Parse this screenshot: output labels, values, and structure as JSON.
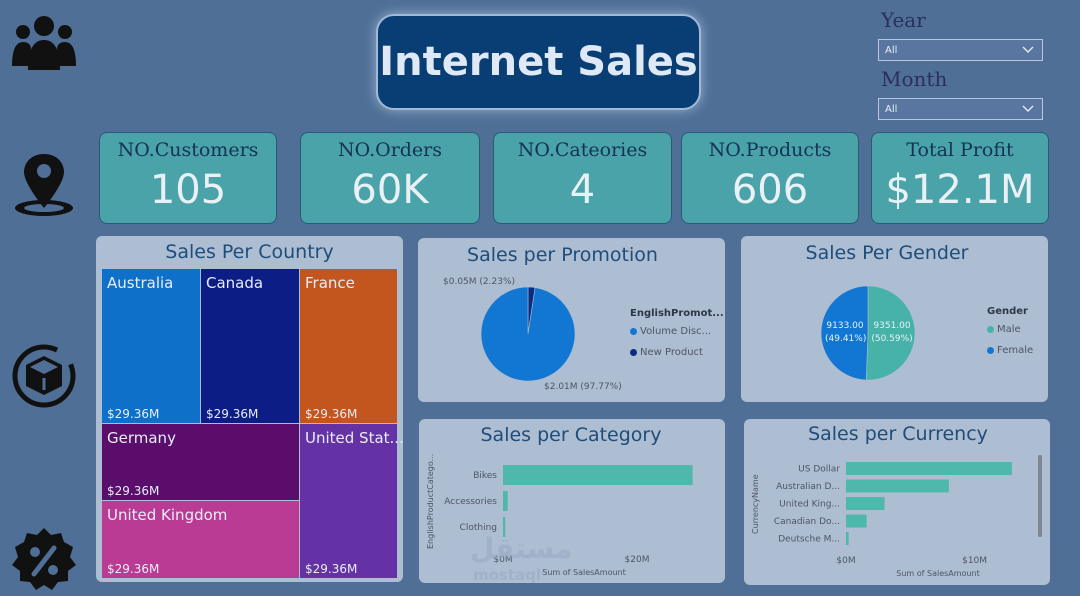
{
  "title": "Internet Sales",
  "nav": {
    "icons": [
      "users-icon",
      "map-pin-icon",
      "product-box-icon",
      "discount-badge-icon"
    ]
  },
  "slicers": {
    "year": {
      "label": "Year",
      "value": "All"
    },
    "month": {
      "label": "Month",
      "value": "All"
    }
  },
  "kpis": [
    {
      "label": "NO.Customers",
      "value": "105"
    },
    {
      "label": "NO.Orders",
      "value": "60K"
    },
    {
      "label": "NO.Cateories",
      "value": "4"
    },
    {
      "label": "NO.Products",
      "value": "606"
    },
    {
      "label": "Total Profit",
      "value": "$12.1M"
    }
  ],
  "country": {
    "title": "Sales Per Country",
    "tiles": [
      {
        "name": "Australia",
        "value": "$29.36M",
        "color": "#0f70c9"
      },
      {
        "name": "Canada",
        "value": "$29.36M",
        "color": "#0c1d86"
      },
      {
        "name": "France",
        "value": "$29.36M",
        "color": "#c3551f"
      },
      {
        "name": "Germany",
        "value": "$29.36M",
        "color": "#5a0d6b"
      },
      {
        "name": "United Stat...",
        "value": "$29.36M",
        "color": "#6532a5"
      },
      {
        "name": "United Kingdom",
        "value": "$29.36M",
        "color": "#b93b93"
      }
    ]
  },
  "promotion": {
    "title": "Sales per Promotion",
    "legend_title": "EnglishPromot...",
    "legend": [
      {
        "name": "Volume Disc...",
        "color": "#1277d3"
      },
      {
        "name": "New Product",
        "color": "#0d2b80"
      }
    ],
    "label_small": "$0.05M (2.23%)",
    "label_big": "$2.01M (97.77%)"
  },
  "gender": {
    "title": "Sales Per Gender",
    "legend_title": "Gender",
    "legend": [
      {
        "name": "Male",
        "color": "#46b2a8"
      },
      {
        "name": "Female",
        "color": "#1277d3"
      }
    ],
    "female_value": "9133.00",
    "female_pct": "(49.41%)",
    "male_value": "9351.00",
    "male_pct": "(50.59%)"
  },
  "category": {
    "title": "Sales per Category",
    "y_title": "EnglishProductCatego...",
    "x_title": "Sum of SalesAmount",
    "x_ticks": [
      "$0M",
      "$20M"
    ],
    "bar_color": "#4fb8ad"
  },
  "currency": {
    "title": "Sales per Currency",
    "y_title": "CurrencyName",
    "x_title": "Sum of SalesAmount",
    "x_ticks": [
      "$0M",
      "$10M"
    ],
    "bar_color": "#4fb8ad"
  },
  "chart_data": [
    {
      "type": "bar",
      "title": "Sales per Category",
      "orientation": "horizontal",
      "categories": [
        "Bikes",
        "Accessories",
        "Clothing"
      ],
      "values": [
        28.3,
        0.7,
        0.34
      ],
      "unit": "$M",
      "xlabel": "Sum of SalesAmount",
      "ylabel": "EnglishProductCatego...",
      "xlim": [
        0,
        30
      ]
    },
    {
      "type": "bar",
      "title": "Sales per Currency",
      "orientation": "horizontal",
      "categories": [
        "US Dollar",
        "Australian D...",
        "United King...",
        "Canadian Do...",
        "Deutsche M..."
      ],
      "values": [
        12.9,
        8.0,
        3.0,
        1.6,
        0.2
      ],
      "unit": "$M",
      "xlabel": "Sum of SalesAmount",
      "ylabel": "CurrencyName",
      "xlim": [
        0,
        14
      ]
    },
    {
      "type": "pie",
      "title": "Sales per Promotion",
      "labels": [
        "Volume Disc...",
        "New Product"
      ],
      "values": [
        2.01,
        0.05
      ],
      "percent": [
        97.77,
        2.23
      ]
    },
    {
      "type": "pie",
      "title": "Sales Per Gender",
      "labels": [
        "Female",
        "Male"
      ],
      "values": [
        9133,
        9351
      ],
      "percent": [
        49.41,
        50.59
      ]
    }
  ],
  "watermark": {
    "arabic": "مستقل",
    "latin": "mostaql"
  }
}
